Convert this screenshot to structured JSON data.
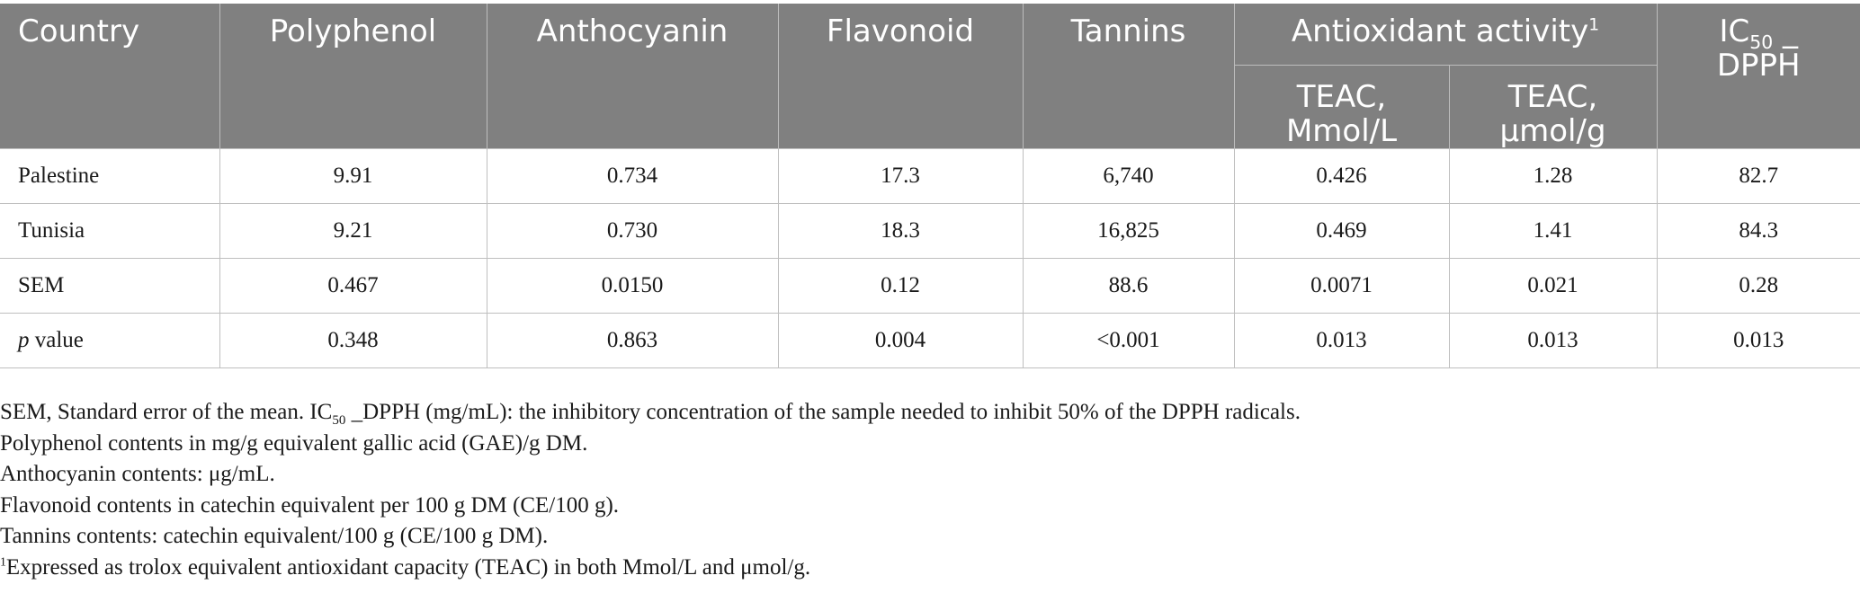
{
  "table": {
    "headers": {
      "country": "Country",
      "polyphenol": "Polyphenol",
      "anthocyanin": "Anthocyanin",
      "flavonoid": "Flavonoid",
      "tannins": "Tannins",
      "antioxidant_group": "Antioxidant activity",
      "antioxidant_sup": "1",
      "teac_mmol_line1": "TEAC,",
      "teac_mmol_line2": "Mmol/L",
      "teac_umol_line1": "TEAC,",
      "teac_umol_line2": "μmol/g",
      "ic50_prefix": "IC",
      "ic50_sub": "50",
      "ic50_line1_suffix": " _",
      "ic50_line2": "DPPH"
    },
    "rows": [
      {
        "country": "Palestine",
        "polyphenol": "9.91",
        "anthocyanin": "0.734",
        "flavonoid": "17.3",
        "tannins": "6,740",
        "teac_mmol": "0.426",
        "teac_umol": "1.28",
        "ic50": "82.7"
      },
      {
        "country": "Tunisia",
        "polyphenol": "9.21",
        "anthocyanin": "0.730",
        "flavonoid": "18.3",
        "tannins": "16,825",
        "teac_mmol": "0.469",
        "teac_umol": "1.41",
        "ic50": "84.3"
      },
      {
        "country": "SEM",
        "polyphenol": "0.467",
        "anthocyanin": "0.0150",
        "flavonoid": "0.12",
        "tannins": "88.6",
        "teac_mmol": "0.0071",
        "teac_umol": "0.021",
        "ic50": "0.28"
      },
      {
        "country_italic": "p",
        "country_rest": " value",
        "polyphenol": "0.348",
        "anthocyanin": "0.863",
        "flavonoid": "0.004",
        "tannins": "<0.001",
        "teac_mmol": "0.013",
        "teac_umol": "0.013",
        "ic50": "0.013"
      }
    ]
  },
  "footnotes": {
    "sem_a": "SEM, Standard error of the mean. IC",
    "sem_sub": "50",
    "sem_b": " _DPPH (mg/mL): the inhibitory concentration of the sample needed to inhibit 50% of the DPPH radicals.",
    "polyphenol": "Polyphenol contents in mg/g equivalent gallic acid (GAE)/g DM.",
    "anthocyanin": "Anthocyanin contents: μg/mL.",
    "flavonoid": "Flavonoid contents in catechin equivalent per 100 g DM (CE/100 g).",
    "tannins": "Tannins contents: catechin equivalent/100 g (CE/100 g DM).",
    "teac_sup": "1",
    "teac": "Expressed as trolox equivalent antioxidant capacity (TEAC) in both Mmol/L and μmol/g."
  }
}
